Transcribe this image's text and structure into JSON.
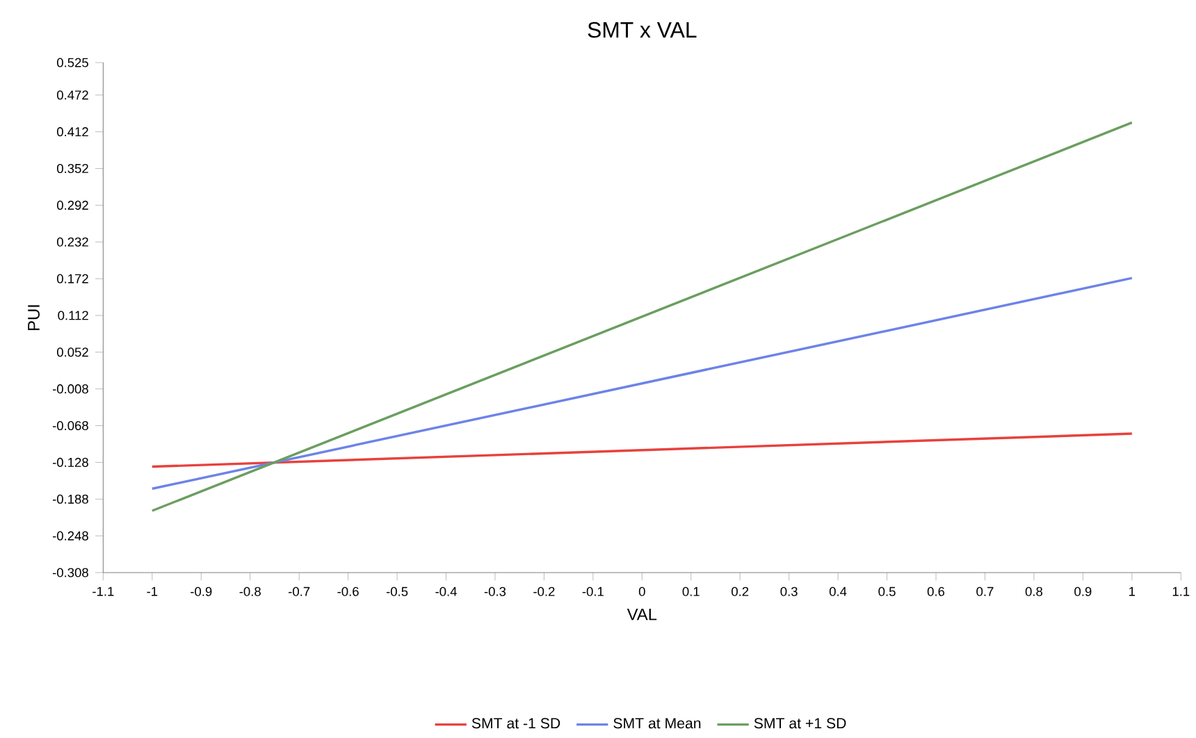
{
  "chart_data": {
    "type": "line",
    "title": "SMT x VAL",
    "xlabel": "VAL",
    "ylabel": "PUI",
    "x": [
      -1,
      1
    ],
    "series": [
      {
        "name": "SMT at -1 SD",
        "color": "#e8413c",
        "values": [
          -0.135,
          -0.081
        ]
      },
      {
        "name": "SMT at Mean",
        "color": "#6d83e8",
        "values": [
          -0.171,
          0.173
        ]
      },
      {
        "name": "SMT at +1 SD",
        "color": "#6a9e5f",
        "values": [
          -0.207,
          0.427
        ]
      }
    ],
    "xlim": [
      -1.1,
      1.1
    ],
    "xticks": [
      -1.1,
      -1,
      -0.9,
      -0.8,
      -0.7,
      -0.6,
      -0.5,
      -0.4,
      -0.3,
      -0.2,
      -0.1,
      0,
      0.1,
      0.2,
      0.3,
      0.4,
      0.5,
      0.6,
      0.7,
      0.8,
      0.9,
      1,
      1.1
    ],
    "ylim": [
      -0.308,
      0.525
    ],
    "yticks": [
      -0.308,
      -0.248,
      -0.188,
      -0.128,
      -0.068,
      -0.008,
      0.052,
      0.112,
      0.172,
      0.232,
      0.292,
      0.352,
      0.412,
      0.472,
      0.525
    ],
    "legend": "bottom",
    "grid": false
  }
}
